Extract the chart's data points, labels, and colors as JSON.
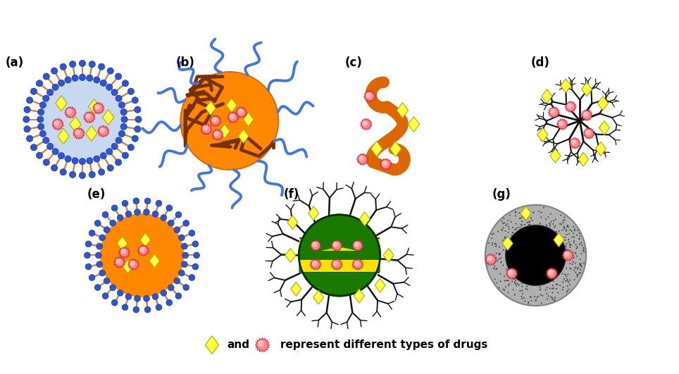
{
  "fig_width": 9.64,
  "fig_height": 5.31,
  "background_color": "#ffffff",
  "panel_labels": [
    "(a)",
    "(b)",
    "(c)",
    "(d)",
    "(e)",
    "(f)",
    "(g)"
  ],
  "blue_ball_color": "#3355CC",
  "blue_ball_edge": "#1133AA",
  "lipid_tail_color": "#D08840",
  "liposome_bg": "#C8D8F0",
  "orange_np": "#FF8800",
  "orange_np_edge": "#CC6600",
  "brown_polymer": "#7B3000",
  "blue_peg": "#4477DD",
  "polymer_orange": "#DD6600",
  "dendrimer_black": "#111111",
  "green_body": "#1A7A00",
  "yellow_stripe": "#FFE000",
  "stripe_edge_blue": "#3333BB",
  "gray_shell_fill": "#B0B0B0",
  "gray_shell_edge": "#808080",
  "dot_color": "#444444",
  "black_core": "#000000",
  "drug_yellow_fill": "#FFFF44",
  "drug_yellow_edge": "#AAAA00",
  "drug_pink_fill": "#FF8888",
  "drug_pink_edge": "#CC2244",
  "drug_pink_center": "#FFBBBB"
}
